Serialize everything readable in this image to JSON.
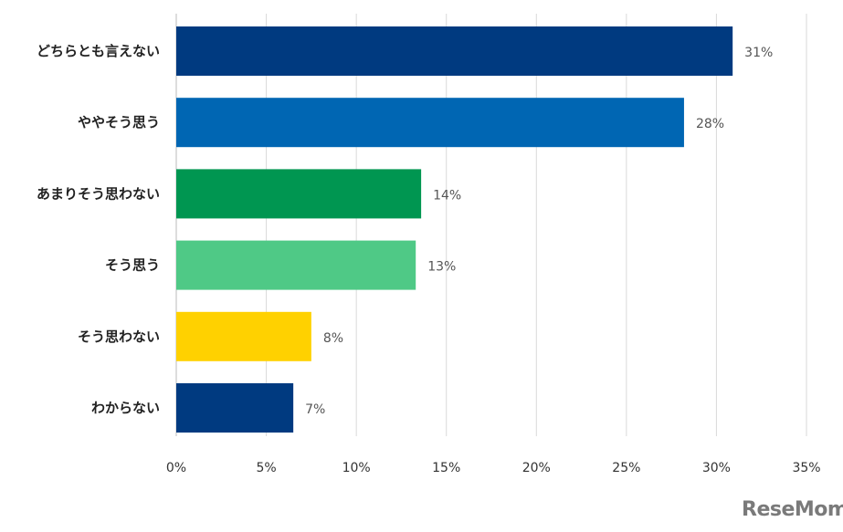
{
  "chart_data": {
    "type": "bar",
    "orientation": "horizontal",
    "categories": [
      "どちらとも言えない",
      "ややそう思う",
      "あまりそう思わない",
      "そう思う",
      "そう思わない",
      "わからない"
    ],
    "values": [
      30.9,
      28.2,
      13.6,
      13.3,
      7.5,
      6.5
    ],
    "data_labels": [
      "31%",
      "28%",
      "14%",
      "13%",
      "8%",
      "7%"
    ],
    "colors": [
      "#003a80",
      "#0066b3",
      "#009651",
      "#4fc986",
      "#ffd100",
      "#003a80"
    ],
    "xlim": [
      0,
      35
    ],
    "xticks": [
      "0%",
      "5%",
      "10%",
      "15%",
      "20%",
      "25%",
      "30%",
      "35%"
    ],
    "grid": true,
    "title": "",
    "xlabel": "",
    "ylabel": ""
  },
  "watermark": "ReseMom"
}
